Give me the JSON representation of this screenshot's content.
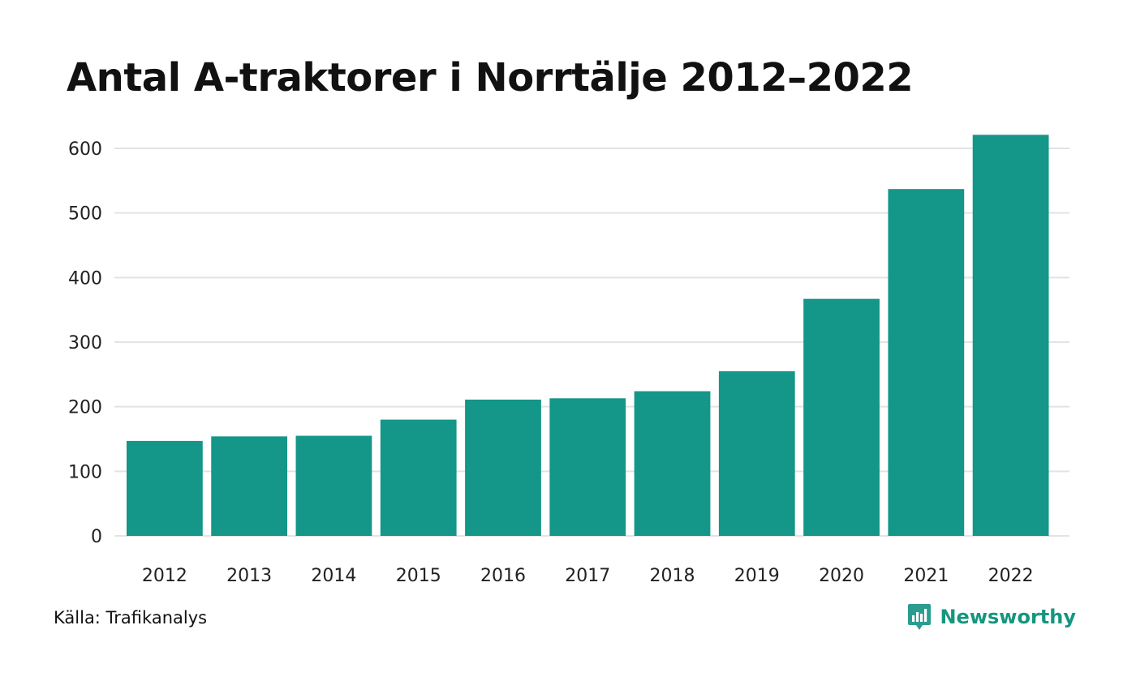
{
  "title": "Antal A-traktorer i Norrtälje 2012–2022",
  "source": "Källa: Trafikanalys",
  "brand": {
    "name": "Newsworthy",
    "icon": "chat-bar-chart-icon"
  },
  "colors": {
    "bar": "#149688",
    "grid": "#e3e3e3",
    "brand": "#14967f"
  },
  "chart_data": {
    "type": "bar",
    "title": "Antal A-traktorer i Norrtälje 2012–2022",
    "xlabel": "",
    "ylabel": "",
    "categories": [
      "2012",
      "2013",
      "2014",
      "2015",
      "2016",
      "2017",
      "2018",
      "2019",
      "2020",
      "2021",
      "2022"
    ],
    "values": [
      147,
      154,
      155,
      180,
      211,
      213,
      224,
      255,
      367,
      537,
      621
    ],
    "ylim": [
      0,
      600
    ],
    "yticks": [
      "0",
      "100",
      "200",
      "300",
      "400",
      "500",
      "600"
    ],
    "grid": true,
    "legend": "none"
  }
}
